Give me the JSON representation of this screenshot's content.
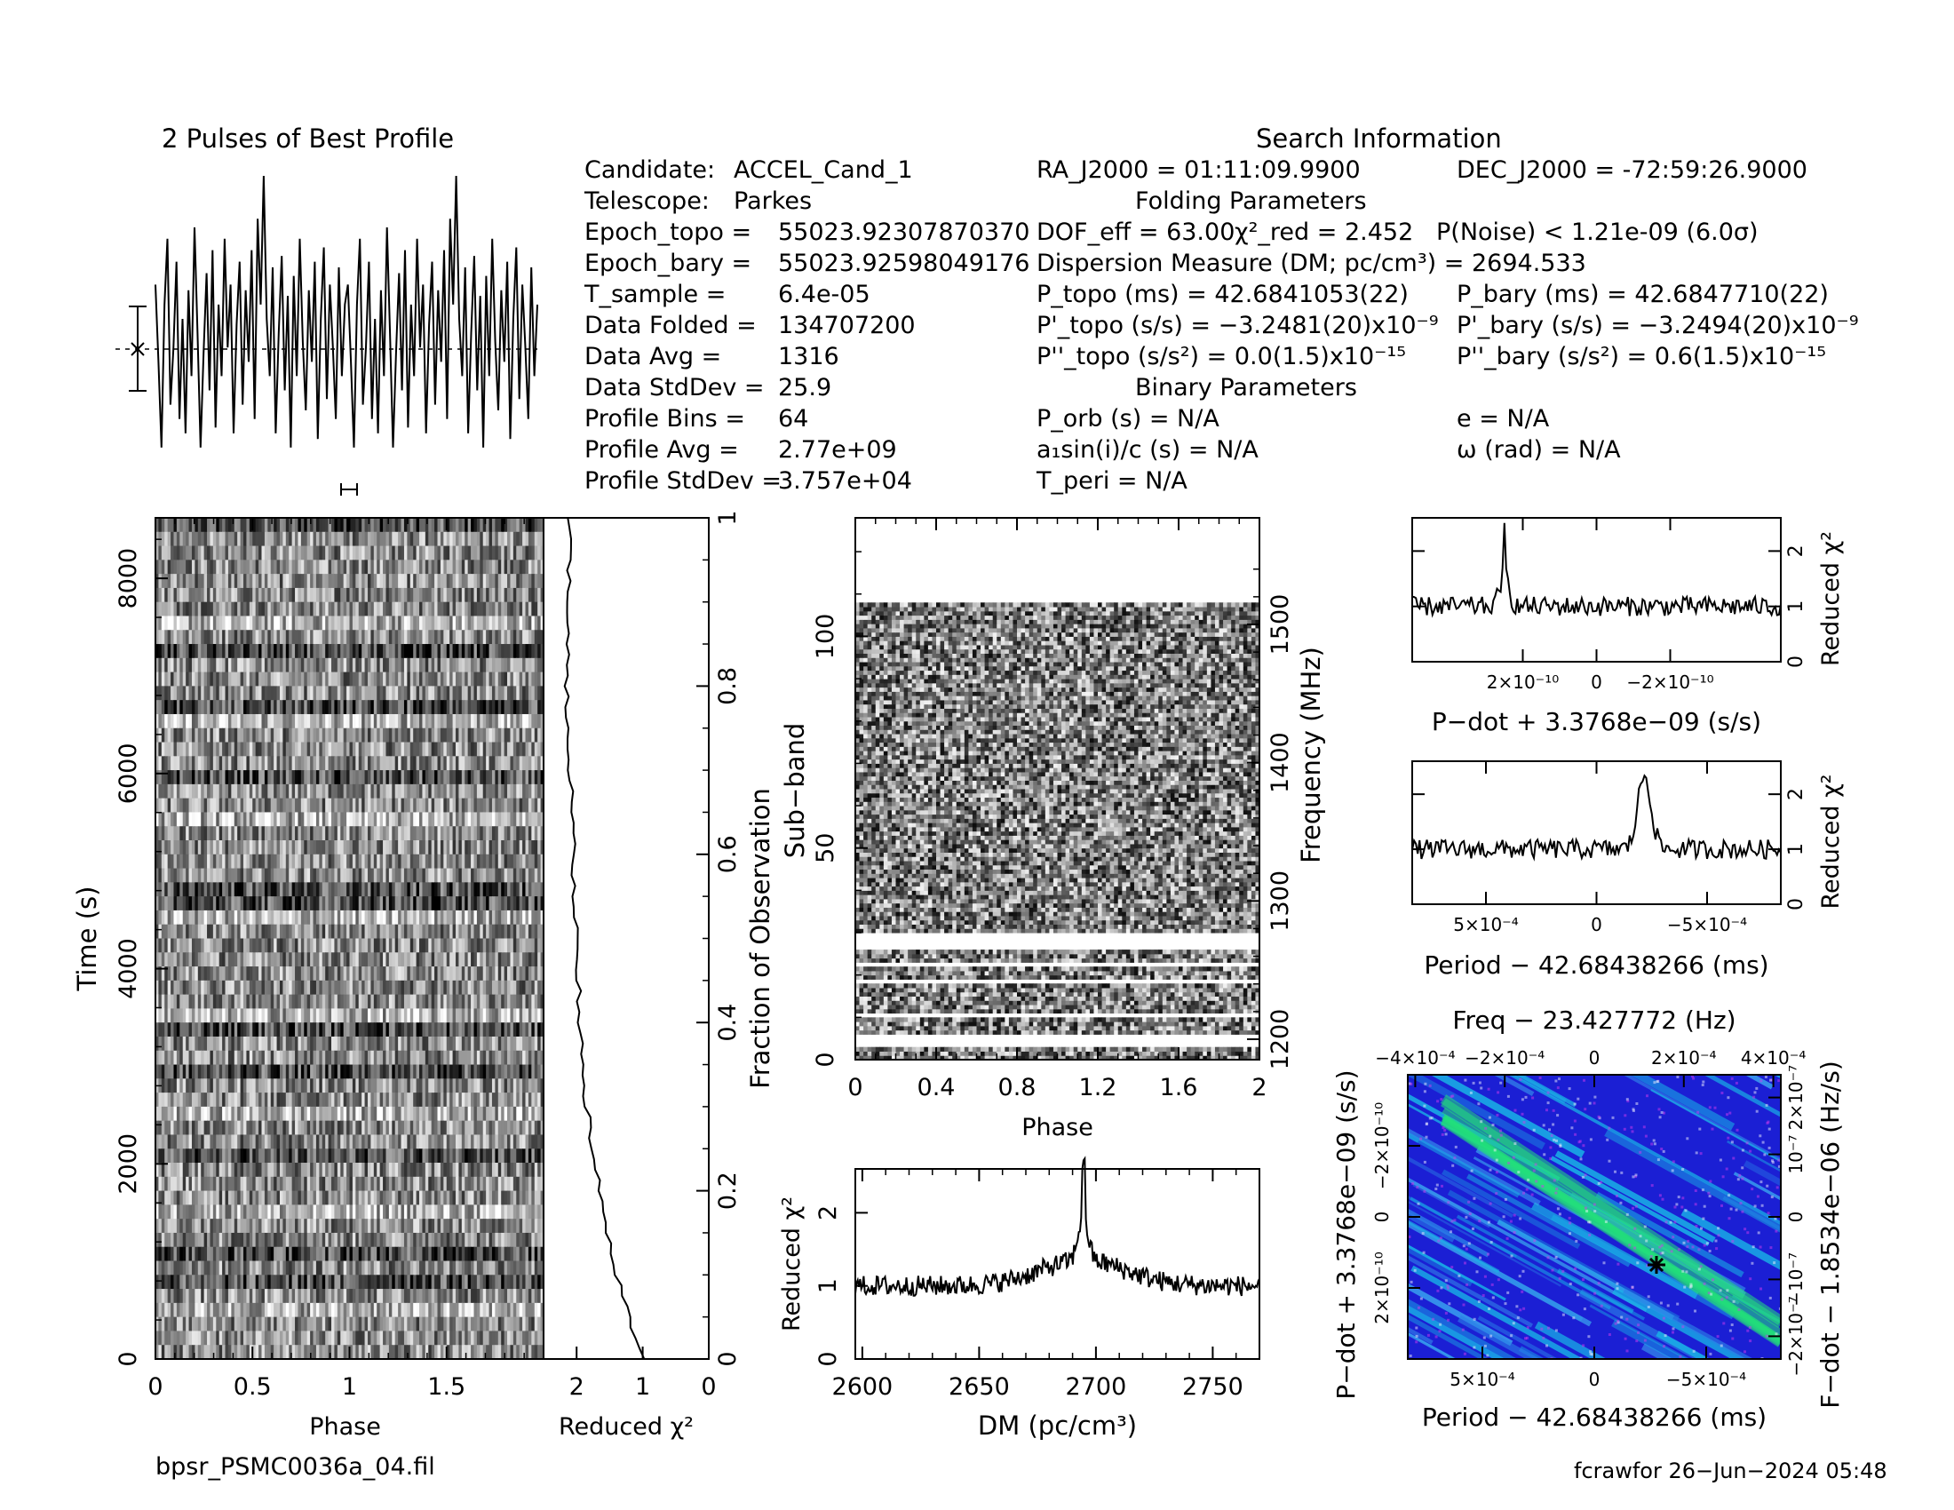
{
  "header": {
    "profile_title": "2 Pulses of Best Profile",
    "search_title": "Search Information",
    "folding_title": "Folding Parameters",
    "binary_title": "Binary Parameters"
  },
  "candidate_info": [
    {
      "label": "Candidate:",
      "value": "ACCEL_Cand_1"
    },
    {
      "label": "Telescope:",
      "value": "Parkes"
    },
    {
      "label": "Epoch_topo =",
      "value": "55023.92307870370"
    },
    {
      "label": "Epoch_bary =",
      "value": "55023.92598049176"
    },
    {
      "label": "T_sample =",
      "value": "6.4e-05"
    },
    {
      "label": "Data Folded =",
      "value": "134707200"
    },
    {
      "label": "Data Avg =",
      "value": "1316"
    },
    {
      "label": "Data StdDev =",
      "value": "25.9"
    },
    {
      "label": "Profile Bins =",
      "value": "64"
    },
    {
      "label": "Profile Avg =",
      "value": "2.77e+09"
    },
    {
      "label": "Profile StdDev =",
      "value": "3.757e+04"
    }
  ],
  "search_info": {
    "ra": "RA_J2000 = 01:11:09.9900",
    "dec": "DEC_J2000 = -72:59:26.9000"
  },
  "folding_params": {
    "dof": "DOF_eff = 63.00",
    "chi2": "χ²_red = 2.452",
    "pnoise": "P(Noise) < 1.21e-09   (6.0σ)",
    "dm": "Dispersion Measure (DM; pc/cm³) = 2694.533",
    "ptopo": "P_topo (ms) =  42.6841053(22)",
    "pbary": "P_bary (ms) =  42.6847710(22)",
    "pdot_topo": "P'_topo (s/s) = −3.2481(20)x10⁻⁹",
    "pdot_bary": "P'_bary (s/s) = −3.2494(20)x10⁻⁹",
    "pddot_topo": "P''_topo (s/s²) = 0.0(1.5)x10⁻¹⁵",
    "pddot_bary": "P''_bary (s/s²) =  0.6(1.5)x10⁻¹⁵"
  },
  "binary_params": {
    "porb": "P_orb (s) = N/A",
    "e": "e = N/A",
    "a1": "a₁sin(i)/c (s) = N/A",
    "omega": "ω (rad) = N/A",
    "tperi": "T_peri = N/A"
  },
  "footer": {
    "filename": "bpsr_PSMC0036a_04.fil",
    "stamp": "fcrawfor 26−Jun−2024 05:48"
  },
  "colors": {
    "ink": "#000000",
    "heat_low": "#1b1fd4",
    "heat_mid": "#19b4e6",
    "heat_high": "#23e07a"
  },
  "chart_data": [
    {
      "id": "profile",
      "type": "line",
      "title": "2 Pulses of Best Profile",
      "x": "phase 0-2 (2 x 64 bins)",
      "values_one_pulse": [
        0.62,
        0.35,
        0.05,
        0.55,
        0.78,
        0.2,
        0.4,
        0.7,
        0.15,
        0.5,
        0.1,
        0.6,
        0.3,
        0.82,
        0.45,
        0.05,
        0.38,
        0.66,
        0.25,
        0.74,
        0.12,
        0.55,
        0.3,
        0.78,
        0.4,
        0.62,
        0.1,
        0.48,
        0.7,
        0.2,
        0.6,
        0.35,
        0.74,
        0.15,
        0.85,
        0.55,
        1.0,
        0.5,
        0.3,
        0.68,
        0.1,
        0.45,
        0.72,
        0.25,
        0.58,
        0.05,
        0.65,
        0.3,
        0.78,
        0.42,
        0.18,
        0.6,
        0.35,
        0.7,
        0.08,
        0.5,
        0.75,
        0.22,
        0.62,
        0.4,
        0.15,
        0.68,
        0.3,
        0.55
      ]
    },
    {
      "id": "time_phase",
      "type": "heatmap",
      "xlabel": "Phase",
      "ylabel": "Time (s)",
      "xticks": [
        "0",
        "0.5",
        "1",
        "1.5"
      ],
      "yticks": [
        "0",
        "2000",
        "4000",
        "6000",
        "8000"
      ],
      "xlim": [
        0,
        2
      ],
      "ylim": [
        0,
        8620
      ]
    },
    {
      "id": "chi2_vs_time",
      "type": "line",
      "xlabel": "Reduced χ²",
      "ylabel": "Fraction of Observation",
      "xticks": [
        "2",
        "1",
        "0"
      ],
      "yticks": [
        "0",
        "0.2",
        "0.4",
        "0.6",
        "0.8",
        "1"
      ],
      "xlim": [
        2.5,
        0
      ],
      "fraction": [
        0,
        0.03,
        0.06,
        0.1,
        0.15,
        0.2,
        0.3,
        0.4,
        0.5,
        0.6,
        0.7,
        0.8,
        0.9,
        1.0
      ],
      "chi2": [
        1.0,
        1.15,
        1.2,
        1.4,
        1.55,
        1.65,
        1.85,
        1.95,
        2.0,
        2.05,
        2.1,
        2.15,
        2.12,
        2.1
      ]
    },
    {
      "id": "subband_phase",
      "type": "heatmap",
      "xlabel": "Phase",
      "ylabel": "Sub−band",
      "ylabel2": "Frequency (MHz)",
      "xticks": [
        "0",
        "0.4",
        "0.8",
        "1.2",
        "1.6",
        "2"
      ],
      "yticks": [
        "0",
        "50",
        "100"
      ],
      "yticks2": [
        "1200",
        "1300",
        "1400",
        "1500"
      ],
      "xlim": [
        0,
        2
      ],
      "ylim": [
        0,
        128
      ]
    },
    {
      "id": "dm_curve",
      "type": "line",
      "xlabel": "DM (pc/cm³)",
      "ylabel": "Reduced χ²",
      "xticks": [
        "2600",
        "2650",
        "2700",
        "2750"
      ],
      "yticks": [
        "0",
        "1",
        "2"
      ],
      "xlim": [
        2597,
        2770
      ],
      "ylim": [
        0,
        2.6
      ],
      "peak_dm": 2694.533,
      "peak_chi2": 2.45,
      "baseline_chi2": 1.0
    },
    {
      "id": "pdot_curve",
      "type": "line",
      "xlabel": "P−dot + 3.3768e−09 (s/s)",
      "ylabel": "Reduced χ²",
      "xticks": [
        "2×10⁻¹⁰",
        "0",
        "−2×10⁻¹⁰"
      ],
      "yticks": [
        "0",
        "1",
        "2"
      ],
      "ylim": [
        0,
        2.6
      ],
      "peak_chi2": 2.45
    },
    {
      "id": "period_curve",
      "type": "line",
      "xlabel": "Period − 42.68438266 (ms)",
      "ylabel": "Reduced χ²",
      "xticks": [
        "5×10⁻⁴",
        "0",
        "−5×10⁻⁴"
      ],
      "yticks": [
        "0",
        "1",
        "2"
      ],
      "ylim": [
        0,
        2.6
      ],
      "peak_chi2": 2.45
    },
    {
      "id": "p_pdot_plane",
      "type": "heatmap",
      "title": "Freq − 23.427772 (Hz)",
      "xlabel": "Period − 42.68438266 (ms)",
      "ylabel": "P−dot + 3.3768e−09 (s/s)",
      "ylabel2": "F−dot − 1.8534e−06 (Hz/s)",
      "xticks": [
        "5×10⁻⁴",
        "0",
        "−5×10⁻⁴"
      ],
      "xticks_top": [
        "−4×10⁻⁴",
        "−2×10⁻⁴",
        "0",
        "2×10⁻⁴",
        "4×10⁻⁴"
      ],
      "yticks": [
        "2×10⁻¹⁰",
        "0",
        "−2×10⁻¹⁰"
      ],
      "yticks2": [
        "−2×10⁻⁷",
        "−10⁻⁷",
        "0",
        "10⁻⁷",
        "2×10⁻⁷"
      ]
    }
  ]
}
